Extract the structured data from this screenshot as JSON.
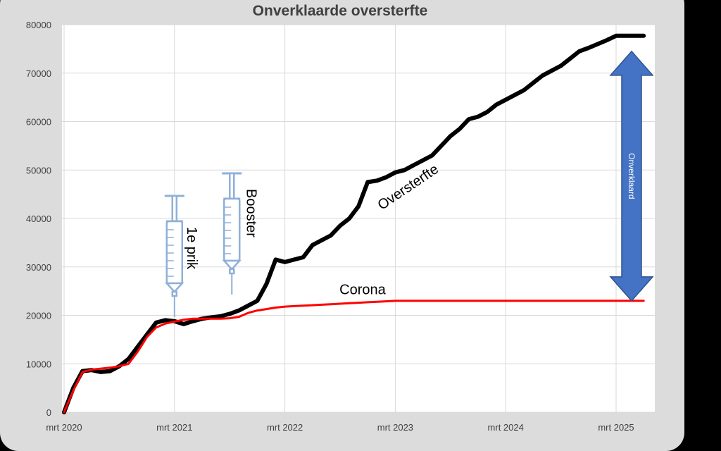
{
  "chart_data": {
    "type": "line",
    "title": "Onverklaarde oversterfte",
    "xlabel": "",
    "ylabel": "",
    "ylim": [
      0,
      80000
    ],
    "yticks": [
      0,
      10000,
      20000,
      30000,
      40000,
      50000,
      60000,
      70000,
      80000
    ],
    "xticks": [
      "mrt 2020",
      "mrt 2021",
      "mrt 2022",
      "mrt 2023",
      "mrt 2024",
      "mrt 2025"
    ],
    "x_start_tick": "mrt 2020",
    "x_end_tick": "mrt 2025",
    "grid": true,
    "series": [
      {
        "name": "Oversterfte",
        "color": "#000000",
        "x": [
          "2020-03",
          "2020-04",
          "2020-05",
          "2020-06",
          "2020-07",
          "2020-08",
          "2020-09",
          "2020-10",
          "2020-11",
          "2020-12",
          "2021-01",
          "2021-02",
          "2021-03",
          "2021-04",
          "2021-05",
          "2021-06",
          "2021-07",
          "2021-08",
          "2021-09",
          "2021-10",
          "2021-11",
          "2021-12",
          "2022-01",
          "2022-02",
          "2022-03",
          "2022-04",
          "2022-05",
          "2022-06",
          "2022-07",
          "2022-08",
          "2022-09",
          "2022-10",
          "2022-11",
          "2022-12",
          "2023-01",
          "2023-02",
          "2023-03",
          "2023-04",
          "2023-05",
          "2023-06",
          "2023-07",
          "2023-08",
          "2023-09",
          "2023-10",
          "2023-11",
          "2023-12",
          "2024-01",
          "2024-02",
          "2024-03",
          "2024-04",
          "2024-05",
          "2024-06",
          "2024-07",
          "2024-08",
          "2024-09",
          "2024-10",
          "2024-11",
          "2024-12",
          "2025-01",
          "2025-02",
          "2025-03",
          "2025-04",
          "2025-05",
          "2025-06"
        ],
        "values": [
          0,
          5000,
          8500,
          8700,
          8300,
          8500,
          9500,
          11000,
          13500,
          16000,
          18500,
          19000,
          18800,
          18200,
          18800,
          19300,
          19600,
          19800,
          20300,
          21000,
          22000,
          23000,
          26500,
          31500,
          31000,
          31500,
          32000,
          34500,
          35500,
          36500,
          38500,
          40000,
          42500,
          47500,
          47800,
          48500,
          49500,
          50000,
          51000,
          52000,
          53000,
          55000,
          57000,
          58500,
          60500,
          61000,
          62000,
          63500,
          64500,
          65500,
          66500,
          68000,
          69500,
          70500,
          71500,
          73000,
          74500,
          75200,
          76000,
          76800,
          77700,
          77700,
          77700,
          77700
        ]
      },
      {
        "name": "Corona",
        "color": "#ff0000",
        "x": [
          "2020-03",
          "2020-04",
          "2020-05",
          "2020-06",
          "2020-07",
          "2020-08",
          "2020-09",
          "2020-10",
          "2020-11",
          "2020-12",
          "2021-01",
          "2021-02",
          "2021-03",
          "2021-04",
          "2021-05",
          "2021-06",
          "2021-07",
          "2021-08",
          "2021-09",
          "2021-10",
          "2021-11",
          "2021-12",
          "2022-01",
          "2022-02",
          "2022-03",
          "2022-04",
          "2022-05",
          "2022-06",
          "2022-07",
          "2022-08",
          "2022-09",
          "2022-10",
          "2022-11",
          "2022-12",
          "2023-01",
          "2023-02",
          "2023-03",
          "2023-04",
          "2023-05",
          "2023-06",
          "2023-07",
          "2023-08",
          "2023-09",
          "2023-10",
          "2023-11",
          "2023-12",
          "2024-01",
          "2024-02",
          "2024-03",
          "2024-04",
          "2024-05",
          "2024-06",
          "2024-07",
          "2024-08",
          "2024-09",
          "2024-10",
          "2024-11",
          "2024-12",
          "2025-01",
          "2025-02",
          "2025-03",
          "2025-04",
          "2025-05",
          "2025-06"
        ],
        "values": [
          0,
          4500,
          8300,
          8800,
          9000,
          9200,
          9500,
          10000,
          12500,
          15500,
          17500,
          18300,
          18700,
          19100,
          19300,
          19300,
          19300,
          19300,
          19400,
          19700,
          20500,
          21000,
          21300,
          21600,
          21800,
          21900,
          22000,
          22100,
          22200,
          22300,
          22400,
          22500,
          22600,
          22700,
          22800,
          22900,
          23000,
          23000,
          23000,
          23000,
          23000,
          23000,
          23000,
          23000,
          23000,
          23000,
          23000,
          23000,
          23000,
          23000,
          23000,
          23000,
          23000,
          23000,
          23000,
          23000,
          23000,
          23000,
          23000,
          23000,
          23000,
          23000,
          23000,
          23000
        ]
      }
    ],
    "annotations": [
      {
        "text": "1e prik",
        "date": "2021-03",
        "icon": "syringe-icon"
      },
      {
        "text": "Booster",
        "date": "2021-10",
        "icon": "syringe-icon"
      },
      {
        "text": "Oversterfte",
        "series": "Oversterfte",
        "date": "2022-11"
      },
      {
        "text": "Corona",
        "series": "Corona",
        "date": "2022-08"
      },
      {
        "text": "Onverklaard",
        "type": "double-arrow",
        "from": 23000,
        "to": 74500,
        "color": "#4472c4"
      }
    ]
  }
}
